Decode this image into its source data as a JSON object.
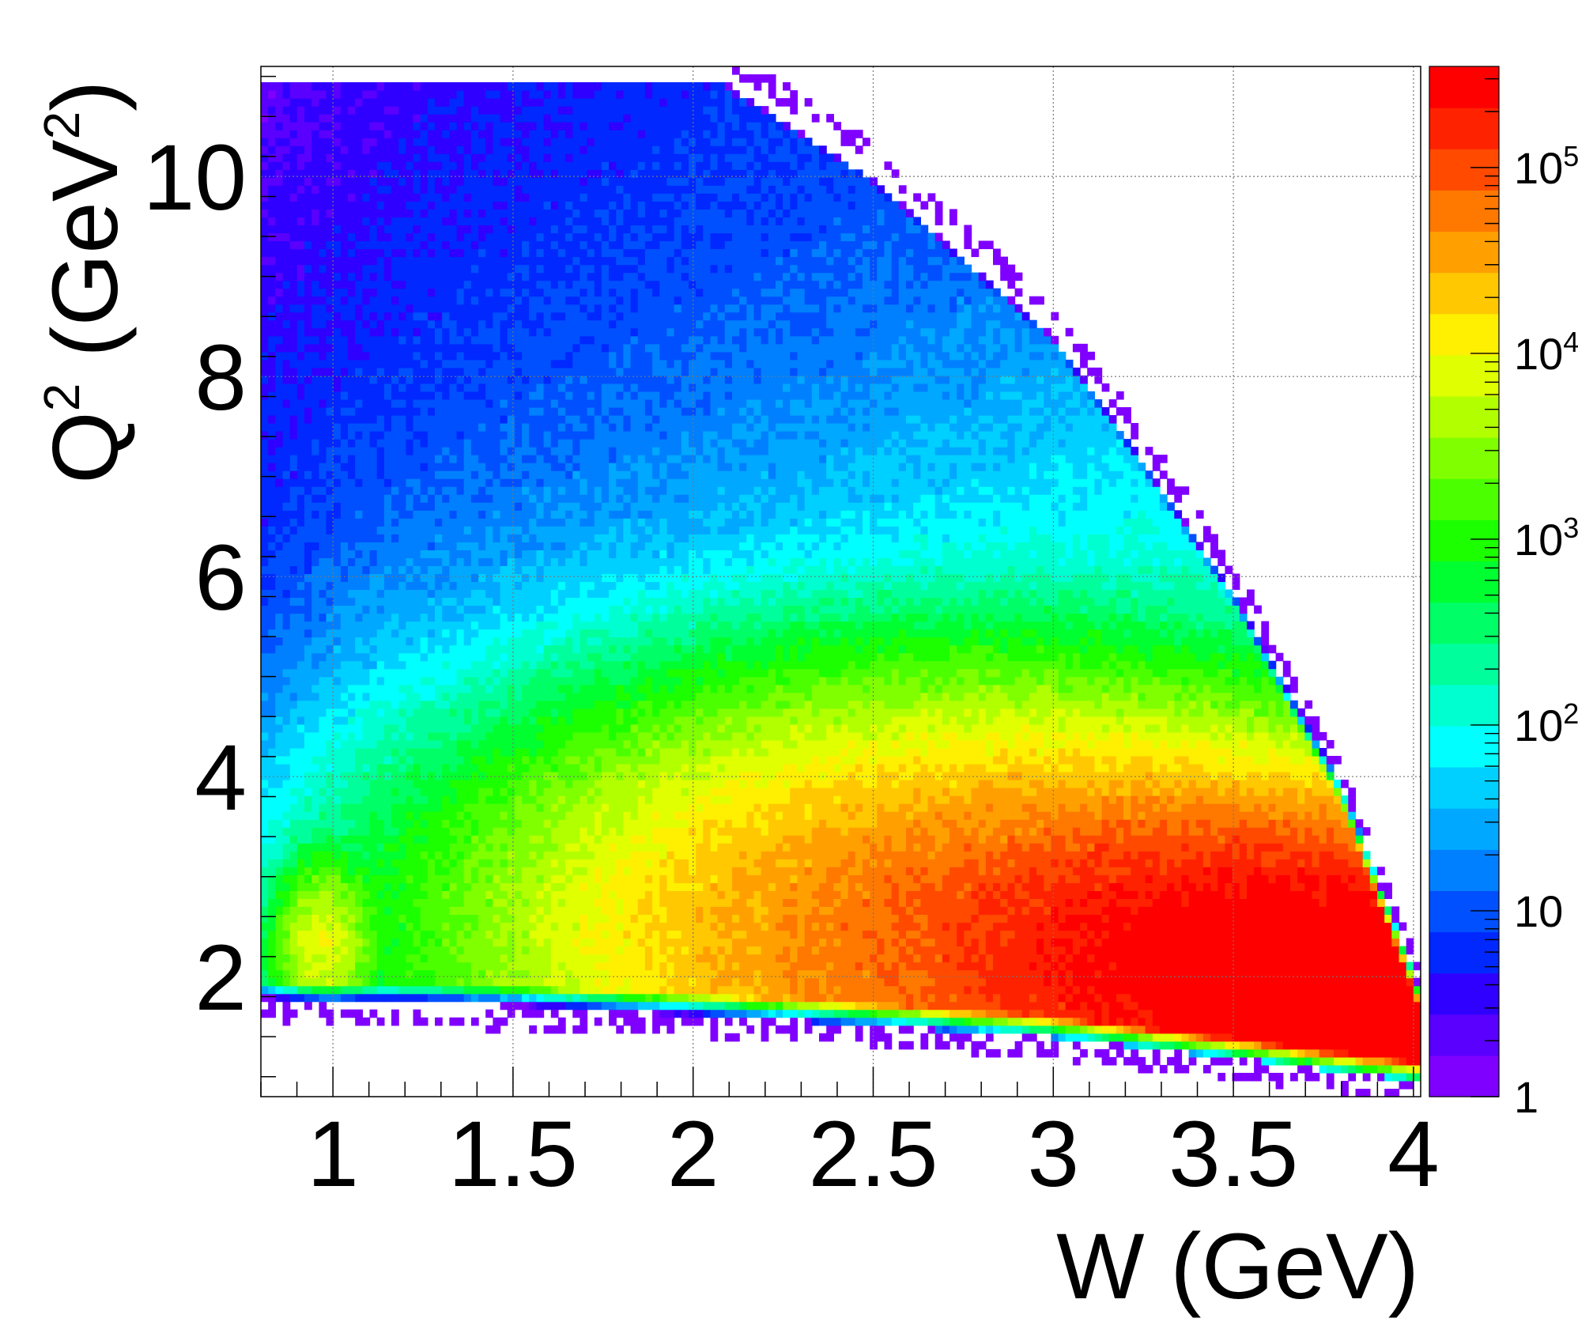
{
  "chart_data": {
    "type": "heatmap",
    "xlabel": "W (GeV)",
    "ylabel_base": "Q",
    "ylabel_sup": "2",
    "ylabel_unit": " (GeV",
    "ylabel_unit_sup": "2",
    "ylabel_close": ")",
    "xlim": [
      0.8,
      4.02
    ],
    "ylim": [
      0.8,
      11.1
    ],
    "x_ticks": [
      1,
      1.5,
      2,
      2.5,
      3,
      3.5,
      4
    ],
    "x_tick_labels": [
      "1",
      "1.5",
      "2",
      "2.5",
      "3",
      "3.5",
      "4"
    ],
    "y_ticks": [
      2,
      4,
      6,
      8,
      10
    ],
    "y_tick_labels": [
      "2",
      "4",
      "6",
      "8",
      "10"
    ],
    "grid": true,
    "colorbar": {
      "scale": "log",
      "range": [
        1,
        350000
      ],
      "tick_values": [
        1,
        10,
        100,
        1000,
        10000,
        100000
      ],
      "tick_labels": [
        {
          "base": "1",
          "exp": ""
        },
        {
          "base": "10",
          "exp": ""
        },
        {
          "base": "10",
          "exp": "2"
        },
        {
          "base": "10",
          "exp": "3"
        },
        {
          "base": "10",
          "exp": "4"
        },
        {
          "base": "10",
          "exp": "5"
        }
      ],
      "palette": [
        "#7f00ff",
        "#5a00ff",
        "#2f00ff",
        "#0028ff",
        "#0050ff",
        "#0080ff",
        "#00a8ff",
        "#00d0ff",
        "#00ffff",
        "#00ffd0",
        "#00ff9c",
        "#00ff66",
        "#00ff30",
        "#1cff00",
        "#4cff00",
        "#80ff00",
        "#b2ff00",
        "#e0ff00",
        "#ffef00",
        "#ffc800",
        "#ffa000",
        "#ff7800",
        "#ff4a00",
        "#ff2200",
        "#ff0000"
      ]
    },
    "acceptance": {
      "lower_edge": [
        [
          0.8,
          1.75
        ],
        [
          1.5,
          1.72
        ],
        [
          2.0,
          1.65
        ],
        [
          2.5,
          1.55
        ],
        [
          3.0,
          1.42
        ],
        [
          3.5,
          1.22
        ],
        [
          4.02,
          0.98
        ]
      ],
      "upper_edge": [
        [
          0.8,
          11.1
        ],
        [
          2.07,
          11.1
        ],
        [
          2.5,
          10.1
        ],
        [
          3.0,
          8.5
        ],
        [
          3.2,
          7.5
        ],
        [
          3.5,
          5.9
        ],
        [
          3.8,
          3.9
        ],
        [
          4.0,
          2.0
        ],
        [
          4.02,
          1.8
        ]
      ]
    },
    "hotspots": [
      {
        "w": 3.9,
        "q2": 1.65,
        "peak": 300000,
        "sw": 0.5,
        "sq": 1.1
      },
      {
        "w": 3.4,
        "q2": 2.3,
        "peak": 150000,
        "sw": 0.55,
        "sq": 1.0
      },
      {
        "w": 2.8,
        "q2": 2.5,
        "peak": 50000,
        "sw": 0.8,
        "sq": 1.4
      },
      {
        "w": 0.97,
        "q2": 2.3,
        "peak": 8000,
        "sw": 0.09,
        "sq": 0.55
      }
    ]
  }
}
